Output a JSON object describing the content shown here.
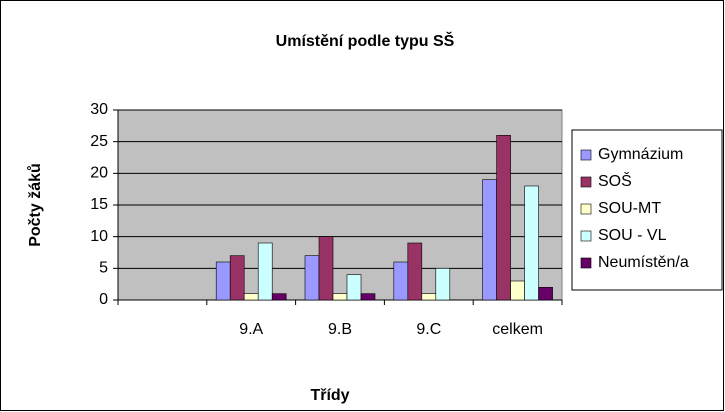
{
  "chart_data": {
    "type": "bar",
    "title": "Umístění podle typu SŠ",
    "x_label": "Třídy",
    "y_label": "Počty žáků",
    "categories": [
      null,
      "9.A",
      "9.B",
      "9.C",
      "celkem"
    ],
    "series": [
      {
        "name": "Gymnázium",
        "color": "#9999FF",
        "values": [
          null,
          6,
          7,
          6,
          19
        ]
      },
      {
        "name": "SOŠ",
        "color": "#993366",
        "values": [
          null,
          7,
          10,
          9,
          26
        ]
      },
      {
        "name": "SOU-MT",
        "color": "#FFFFCC",
        "values": [
          null,
          1,
          1,
          1,
          3
        ]
      },
      {
        "name": "SOU - VL",
        "color": "#CCFFFF",
        "values": [
          null,
          9,
          4,
          5,
          18
        ]
      },
      {
        "name": "Neumístěn/a",
        "color": "#660066",
        "values": [
          null,
          1,
          1,
          0,
          2
        ]
      }
    ],
    "ylim": [
      0,
      30
    ],
    "yticks": [
      0,
      5,
      10,
      15,
      20,
      25,
      30
    ],
    "grid": true,
    "legend": "right"
  }
}
